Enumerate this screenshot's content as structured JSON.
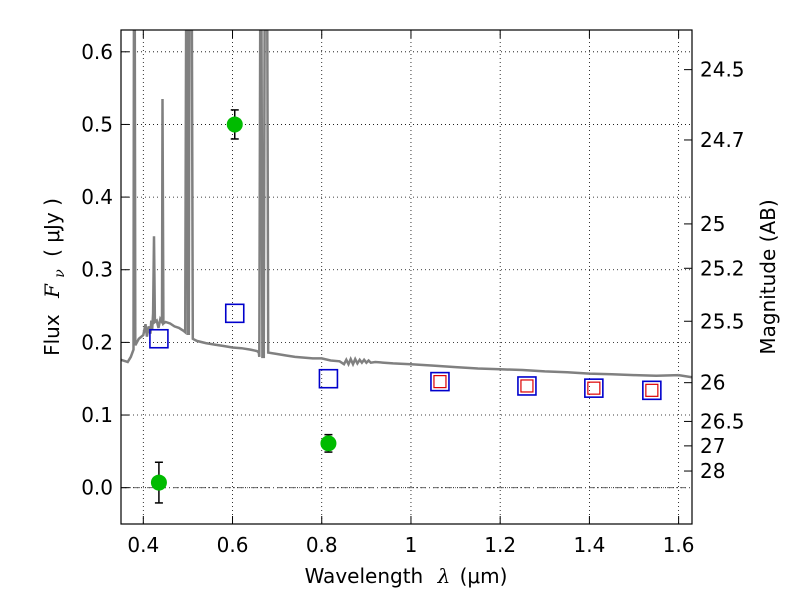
{
  "chart_data": {
    "type": "scatter",
    "xlabel_prefix": "Wavelength",
    "xlabel_symbol": "λ",
    "xlabel_unit": "(μm)",
    "ylabel_prefix": "Flux",
    "ylabel_symbol": "F",
    "ylabel_subscript": "ν",
    "ylabel_unit": "( μJy )",
    "y2label": "Magnitude (AB)",
    "xlim": [
      0.35,
      1.63
    ],
    "ylim": [
      -0.05,
      0.63
    ],
    "grid": true,
    "x_ticks": [
      0.4,
      0.6,
      0.8,
      1.0,
      1.2,
      1.4,
      1.6
    ],
    "x_tick_labels": [
      "0.4",
      "0.6",
      "0.8",
      "1",
      "1.2",
      "1.4",
      "1.6"
    ],
    "y_ticks": [
      0.0,
      0.1,
      0.2,
      0.3,
      0.4,
      0.5,
      0.6
    ],
    "y_tick_labels": [
      "0.0",
      "0.1",
      "0.2",
      "0.3",
      "0.4",
      "0.5",
      "0.6"
    ],
    "mag_ticks": [
      24.5,
      24.7,
      25,
      25.2,
      25.5,
      26,
      26.5,
      27,
      28
    ],
    "mag_tick_labels": [
      "24.5",
      "24.7",
      "25",
      "25.2",
      "25.5",
      "26",
      "26.5",
      "27",
      "28"
    ],
    "colors": {
      "model": "#808080",
      "observed": "#00bb00",
      "model_blue": "#0000cc",
      "model_red": "#dd0000"
    },
    "series": [
      {
        "name": "model spectrum",
        "kind": "line",
        "points": [
          [
            0.35,
            0.176
          ],
          [
            0.365,
            0.173
          ],
          [
            0.372,
            0.18
          ],
          [
            0.378,
            0.19
          ],
          [
            0.379,
            0.63
          ],
          [
            0.381,
            0.63
          ],
          [
            0.382,
            0.196
          ],
          [
            0.39,
            0.205
          ],
          [
            0.4,
            0.21
          ],
          [
            0.405,
            0.225
          ],
          [
            0.408,
            0.208
          ],
          [
            0.412,
            0.222
          ],
          [
            0.416,
            0.212
          ],
          [
            0.418,
            0.23
          ],
          [
            0.42,
            0.218
          ],
          [
            0.422,
            0.24
          ],
          [
            0.424,
            0.346
          ],
          [
            0.426,
            0.228
          ],
          [
            0.43,
            0.23
          ],
          [
            0.434,
            0.22
          ],
          [
            0.438,
            0.232
          ],
          [
            0.442,
            0.228
          ],
          [
            0.443,
            0.535
          ],
          [
            0.445,
            0.226
          ],
          [
            0.45,
            0.228
          ],
          [
            0.46,
            0.226
          ],
          [
            0.47,
            0.222
          ],
          [
            0.48,
            0.22
          ],
          [
            0.49,
            0.216
          ],
          [
            0.494,
            0.214
          ],
          [
            0.496,
            0.63
          ],
          [
            0.499,
            0.63
          ],
          [
            0.5,
            0.212
          ],
          [
            0.502,
            0.212
          ],
          [
            0.503,
            0.63
          ],
          [
            0.509,
            0.63
          ],
          [
            0.511,
            0.205
          ],
          [
            0.52,
            0.202
          ],
          [
            0.54,
            0.199
          ],
          [
            0.56,
            0.197
          ],
          [
            0.58,
            0.195
          ],
          [
            0.6,
            0.193
          ],
          [
            0.62,
            0.192
          ],
          [
            0.64,
            0.19
          ],
          [
            0.655,
            0.188
          ],
          [
            0.659,
            0.186
          ],
          [
            0.66,
            0.18
          ],
          [
            0.662,
            0.63
          ],
          [
            0.665,
            0.63
          ],
          [
            0.667,
            0.18
          ],
          [
            0.67,
            0.18
          ],
          [
            0.672,
            0.63
          ],
          [
            0.678,
            0.63
          ],
          [
            0.68,
            0.186
          ],
          [
            0.7,
            0.184
          ],
          [
            0.72,
            0.182
          ],
          [
            0.74,
            0.18
          ],
          [
            0.76,
            0.179
          ],
          [
            0.78,
            0.178
          ],
          [
            0.8,
            0.178
          ],
          [
            0.82,
            0.175
          ],
          [
            0.84,
            0.174
          ],
          [
            0.85,
            0.17
          ],
          [
            0.855,
            0.176
          ],
          [
            0.86,
            0.17
          ],
          [
            0.865,
            0.177
          ],
          [
            0.87,
            0.17
          ],
          [
            0.875,
            0.177
          ],
          [
            0.88,
            0.171
          ],
          [
            0.885,
            0.176
          ],
          [
            0.89,
            0.172
          ],
          [
            0.895,
            0.176
          ],
          [
            0.9,
            0.172
          ],
          [
            0.905,
            0.175
          ],
          [
            0.91,
            0.172
          ],
          [
            0.92,
            0.173
          ],
          [
            0.94,
            0.172
          ],
          [
            0.96,
            0.171
          ],
          [
            1.0,
            0.17
          ],
          [
            1.05,
            0.168
          ],
          [
            1.1,
            0.166
          ],
          [
            1.15,
            0.164
          ],
          [
            1.2,
            0.163
          ],
          [
            1.25,
            0.162
          ],
          [
            1.3,
            0.16
          ],
          [
            1.35,
            0.159
          ],
          [
            1.4,
            0.157
          ],
          [
            1.45,
            0.156
          ],
          [
            1.5,
            0.155
          ],
          [
            1.55,
            0.154
          ],
          [
            1.6,
            0.155
          ],
          [
            1.63,
            0.152
          ]
        ]
      },
      {
        "name": "model photometry (blue)",
        "kind": "square",
        "x": [
          0.435,
          0.605,
          0.815,
          1.065,
          1.26,
          1.41,
          1.54
        ],
        "y": [
          0.205,
          0.24,
          0.15,
          0.146,
          0.14,
          0.137,
          0.134
        ]
      },
      {
        "name": "model photometry (red)",
        "kind": "square",
        "x": [
          1.065,
          1.26,
          1.41,
          1.54
        ],
        "y": [
          0.146,
          0.14,
          0.137,
          0.134
        ]
      },
      {
        "name": "observed photometry",
        "kind": "errorbar",
        "x": [
          0.435,
          0.605,
          0.815
        ],
        "y": [
          0.007,
          0.5,
          0.061
        ],
        "yerr": [
          0.028,
          0.02,
          0.012
        ]
      }
    ]
  }
}
